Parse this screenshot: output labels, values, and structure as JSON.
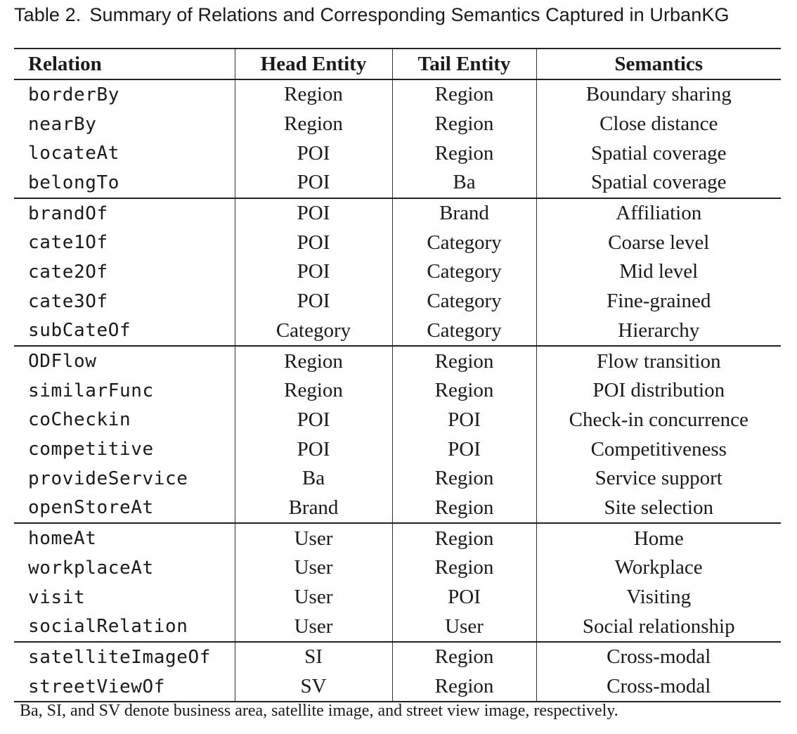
{
  "caption": {
    "label": "Table 2.",
    "text": "Summary of Relations and Corresponding Semantics Captured in UrbanKG"
  },
  "table": {
    "headers": [
      "Relation",
      "Head Entity",
      "Tail Entity",
      "Semantics"
    ],
    "groups": [
      [
        [
          "borderBy",
          "Region",
          "Region",
          "Boundary sharing"
        ],
        [
          "nearBy",
          "Region",
          "Region",
          "Close distance"
        ],
        [
          "locateAt",
          "POI",
          "Region",
          "Spatial coverage"
        ],
        [
          "belongTo",
          "POI",
          "Ba",
          "Spatial coverage"
        ]
      ],
      [
        [
          "brandOf",
          "POI",
          "Brand",
          "Affiliation"
        ],
        [
          "cate1Of",
          "POI",
          "Category",
          "Coarse level"
        ],
        [
          "cate2Of",
          "POI",
          "Category",
          "Mid level"
        ],
        [
          "cate3Of",
          "POI",
          "Category",
          "Fine-grained"
        ],
        [
          "subCateOf",
          "Category",
          "Category",
          "Hierarchy"
        ]
      ],
      [
        [
          "ODFlow",
          "Region",
          "Region",
          "Flow transition"
        ],
        [
          "similarFunc",
          "Region",
          "Region",
          "POI distribution"
        ],
        [
          "coCheckin",
          "POI",
          "POI",
          "Check-in concurrence"
        ],
        [
          "competitive",
          "POI",
          "POI",
          "Competitiveness"
        ],
        [
          "provideService",
          "Ba",
          "Region",
          "Service support"
        ],
        [
          "openStoreAt",
          "Brand",
          "Region",
          "Site selection"
        ]
      ],
      [
        [
          "homeAt",
          "User",
          "Region",
          "Home"
        ],
        [
          "workplaceAt",
          "User",
          "Region",
          "Workplace"
        ],
        [
          "visit",
          "User",
          "POI",
          "Visiting"
        ],
        [
          "socialRelation",
          "User",
          "User",
          "Social relationship"
        ]
      ],
      [
        [
          "satelliteImageOf",
          "SI",
          "Region",
          "Cross-modal"
        ],
        [
          "streetViewOf",
          "SV",
          "Region",
          "Cross-modal"
        ]
      ]
    ]
  },
  "footnote": "Ba, SI, and SV denote business area, satellite image, and street view image, respectively."
}
